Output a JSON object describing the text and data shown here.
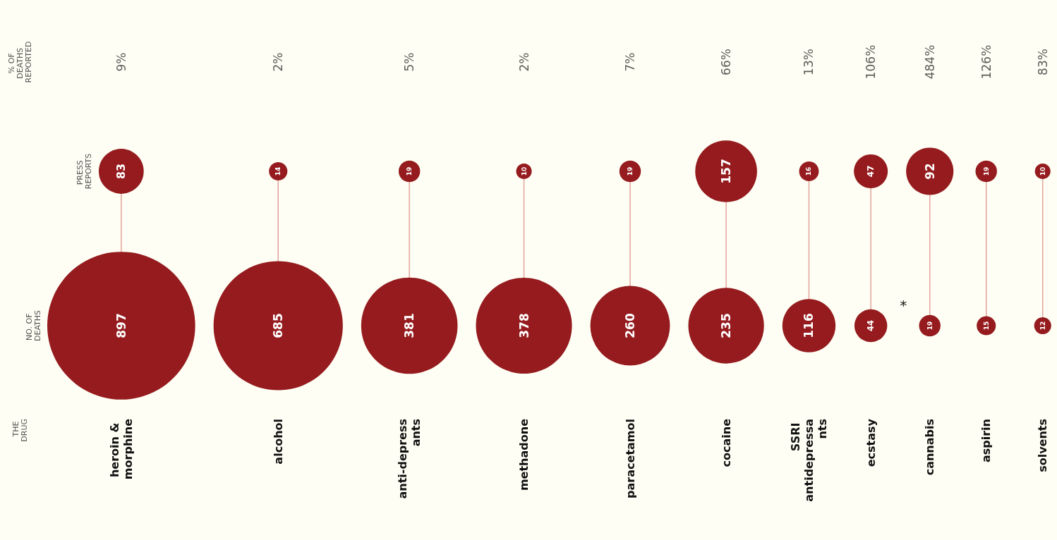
{
  "chart_data": {
    "type": "other",
    "data_labels": true,
    "categories": [
      "heroin & morphine",
      "alcohol",
      "anti-depressants",
      "methadone",
      "paracetamol",
      "cocaine",
      "SSRI antidepressants",
      "ecstasy",
      "cannabis",
      "aspirin",
      "solvents"
    ],
    "series": [
      {
        "name": "NO. OF DEATHS",
        "type": "bubble",
        "color": "#951b1e",
        "values": [
          897,
          685,
          381,
          378,
          260,
          235,
          116,
          44,
          19,
          15,
          12
        ]
      },
      {
        "name": "PRESS REPORTS",
        "type": "bubble",
        "color": "#951b1e",
        "values": [
          83,
          14,
          19,
          10,
          19,
          157,
          16,
          47,
          92,
          19,
          10
        ]
      },
      {
        "name": "% OF DEATHS REPORTED",
        "type": "scatter",
        "marker": "none",
        "values": [
          9,
          2,
          5,
          2,
          7,
          66,
          13,
          106,
          484,
          126,
          83
        ],
        "value_labels": [
          "9%",
          "2%",
          "5%",
          "2%",
          "7%",
          "66%",
          "13%",
          "106%",
          "484%",
          "126%",
          "83%"
        ]
      }
    ],
    "annotations": [
      "THE DRUG",
      {
        "text": "*",
        "x": "cannabis"
      }
    ]
  }
}
